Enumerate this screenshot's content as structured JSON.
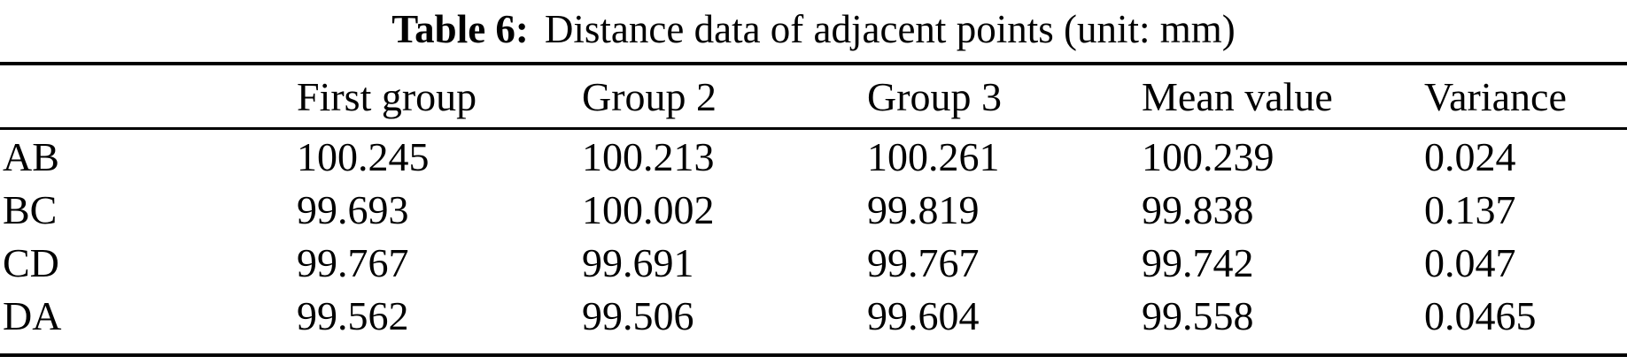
{
  "table": {
    "caption": {
      "label": "Table 6:",
      "text": "Distance data of adjacent points (unit: mm)"
    },
    "columns": [
      "",
      "First group",
      "Group 2",
      "Group 3",
      "Mean value",
      "Variance"
    ],
    "rows": [
      {
        "label": "AB",
        "values": [
          "100.245",
          "100.213",
          "100.261",
          "100.239",
          "0.024"
        ]
      },
      {
        "label": "BC",
        "values": [
          "99.693",
          "100.002",
          "99.819",
          "99.838",
          "0.137"
        ]
      },
      {
        "label": "CD",
        "values": [
          "99.767",
          "99.691",
          "99.767",
          "99.742",
          "0.047"
        ]
      },
      {
        "label": "DA",
        "values": [
          "99.562",
          "99.506",
          "99.604",
          "99.558",
          "0.0465"
        ]
      }
    ]
  },
  "chart_data": {
    "type": "table",
    "title": "Table 6: Distance data of adjacent points (unit: mm)",
    "columns": [
      "",
      "First group",
      "Group 2",
      "Group 3",
      "Mean value",
      "Variance"
    ],
    "rows": [
      [
        "AB",
        100.245,
        100.213,
        100.261,
        100.239,
        0.024
      ],
      [
        "BC",
        99.693,
        100.002,
        99.819,
        99.838,
        0.137
      ],
      [
        "CD",
        99.767,
        99.691,
        99.767,
        99.742,
        0.047
      ],
      [
        "DA",
        99.562,
        99.506,
        99.604,
        99.558,
        0.0465
      ]
    ]
  }
}
